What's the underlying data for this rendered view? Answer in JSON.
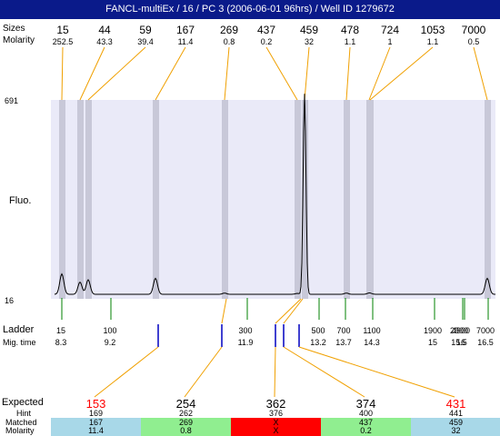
{
  "window": {
    "title": "FANCL-multiEx / 16 / PC 3 (2006-06-01 96hrs) / Well ID 1279672"
  },
  "colors": {
    "title_bg": "#0a1a8a",
    "plot_bg": "#eaeaf8",
    "peak_band": "#c8c8d8",
    "trace": "#000000",
    "leader_line": "#f0a000",
    "ladder_tick": "#008000",
    "ladder_blue": "#0000c0",
    "expected_red": "#ff0000",
    "cell_blue": "#a8d8e8",
    "cell_green": "#90ee90",
    "cell_red": "#ff0000"
  },
  "labels": {
    "sizes": "Sizes",
    "molarity": "Molarity",
    "fluo": "Fluo.",
    "ladder": "Ladder",
    "mig_time": "Mig. time",
    "expected": "Expected",
    "hint": "Hint",
    "matched": "Matched",
    "molarity_bottom": "Molarity"
  },
  "chart_data": {
    "type": "line",
    "ylabel": "Fluo.",
    "ylim": [
      16,
      691
    ],
    "ytick_labels": [
      "691",
      "16"
    ],
    "peaks": [
      {
        "size": "15",
        "molarity": "252.5",
        "mig_time": 8.3,
        "height": 70
      },
      {
        "size": "44",
        "molarity": "43.3",
        "mig_time": 8.6,
        "height": 42
      },
      {
        "size": "59",
        "molarity": "39.4",
        "mig_time": 8.85,
        "height": 50
      },
      {
        "size": "167",
        "molarity": "11.4",
        "mig_time": 10.05,
        "height": 55
      },
      {
        "size": "269",
        "molarity": "0.8",
        "mig_time": 11.35,
        "height": 4
      },
      {
        "size": "437",
        "molarity": "0.2",
        "mig_time": 12.75,
        "height": 3
      },
      {
        "size": "459",
        "molarity": "32",
        "mig_time": 12.95,
        "height": 690
      },
      {
        "size": "478",
        "molarity": "1.1",
        "mig_time": 13.75,
        "height": 4
      },
      {
        "size": "724",
        "molarity": "1",
        "mig_time": 14.1,
        "height": 3
      },
      {
        "size": "1053",
        "molarity": "1.1",
        "mig_time": 14.45,
        "height": 2
      },
      {
        "size": "7000",
        "molarity": "0.5",
        "mig_time": 16.5,
        "height": 55
      }
    ],
    "ladder": [
      {
        "size": "15",
        "mig_time": "8.3"
      },
      {
        "size": "100",
        "mig_time": "9.2"
      },
      {
        "size": "300",
        "mig_time": "11.9"
      },
      {
        "size": "500",
        "mig_time": "13.2"
      },
      {
        "size": "700",
        "mig_time": "13.7"
      },
      {
        "size": "1100",
        "mig_time": "14.3"
      },
      {
        "size": "1900",
        "mig_time": "15"
      },
      {
        "size": "2900",
        "mig_time": "15.5"
      },
      {
        "size": "4900",
        "mig_time": "16"
      },
      {
        "size": "7000",
        "mig_time": "16.5"
      }
    ],
    "expected_marks": [
      10.0,
      11.35,
      12.7,
      12.8,
      12.95
    ],
    "table": [
      {
        "expected": "153",
        "expected_color": "red",
        "hint": "169",
        "matched": "167",
        "molarity": "11.4",
        "status": "blue"
      },
      {
        "expected": "254",
        "expected_color": "black",
        "hint": "262",
        "matched": "269",
        "molarity": "0.8",
        "status": "green"
      },
      {
        "expected": "362",
        "expected_color": "black",
        "hint": "376",
        "matched": "X",
        "molarity": "X",
        "status": "red"
      },
      {
        "expected": "374",
        "expected_color": "black",
        "hint": "400",
        "matched": "437",
        "molarity": "0.2",
        "status": "green"
      },
      {
        "expected": "431",
        "expected_color": "red",
        "hint": "441",
        "matched": "459",
        "molarity": "32",
        "status": "blue"
      }
    ]
  }
}
